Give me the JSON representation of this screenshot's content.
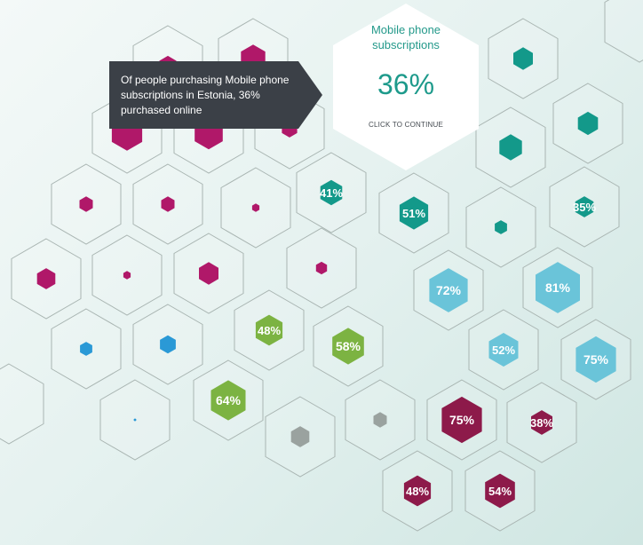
{
  "tooltip": {
    "text": "Of people purchasing Mobile phone subscriptions in Estonia, 36% purchased online"
  },
  "card": {
    "title": "Mobile phone subscriptions",
    "value": "36%",
    "cta": "CLICK TO CONTINUE"
  },
  "colors": {
    "magenta": "#b01869",
    "teal": "#13998a",
    "green": "#7cb342",
    "light_blue": "#6ac4d9",
    "dark_red": "#8d1a4a",
    "grey": "#9aa29f",
    "blue": "#2a99d6",
    "outline": "#a9b5b2"
  },
  "cells": [
    {
      "color": "magenta",
      "level": 0.28
    },
    {
      "color": "magenta",
      "level": 0.4
    },
    {
      "color": "magenta",
      "level": 0.5
    },
    {
      "color": "magenta",
      "level": 0.46
    },
    {
      "color": "magenta",
      "level": 0.25
    },
    {
      "color": "magenta",
      "level": 0.22
    },
    {
      "color": "magenta",
      "level": 0.22
    },
    {
      "color": "magenta",
      "level": 0.12
    },
    {
      "color": "magenta",
      "level": 0.3
    },
    {
      "color": "magenta",
      "level": 0.12
    },
    {
      "color": "magenta",
      "level": 0.32
    },
    {
      "color": "magenta",
      "level": 0.18
    },
    {
      "color": "blue",
      "level": 0.2
    },
    {
      "color": "blue",
      "level": 0.26
    },
    {
      "color": "blue",
      "level": 0.04
    },
    {
      "color": "teal",
      "level": 0.36,
      "label": "41%"
    },
    {
      "color": "teal",
      "level": 0.47,
      "label": "51%"
    },
    {
      "color": "teal",
      "level": 0.3,
      "label": "35%"
    },
    {
      "color": "teal",
      "level": 0.32
    },
    {
      "color": "teal",
      "level": 0.33
    },
    {
      "color": "teal",
      "level": 0.37
    },
    {
      "color": "teal",
      "level": 0.2
    },
    {
      "color": "green",
      "level": 0.44,
      "label": "48%"
    },
    {
      "color": "green",
      "level": 0.52,
      "label": "58%"
    },
    {
      "color": "green",
      "level": 0.57,
      "label": "64%"
    },
    {
      "color": "light_blue",
      "level": 0.63,
      "label": "72%"
    },
    {
      "color": "light_blue",
      "level": 0.73,
      "label": "81%"
    },
    {
      "color": "light_blue",
      "level": 0.48,
      "label": "52%"
    },
    {
      "color": "light_blue",
      "level": 0.66,
      "label": "75%"
    },
    {
      "color": "dark_red",
      "level": 0.66,
      "label": "75%"
    },
    {
      "color": "dark_red",
      "level": 0.35,
      "label": "38%"
    },
    {
      "color": "dark_red",
      "level": 0.44,
      "label": "48%"
    },
    {
      "color": "dark_red",
      "level": 0.49,
      "label": "54%"
    },
    {
      "color": "grey",
      "level": 0.3
    },
    {
      "color": "grey",
      "level": 0.22
    },
    {
      "color": "teal",
      "level": 0.0
    },
    {
      "color": "magenta",
      "level": 0.0
    }
  ]
}
